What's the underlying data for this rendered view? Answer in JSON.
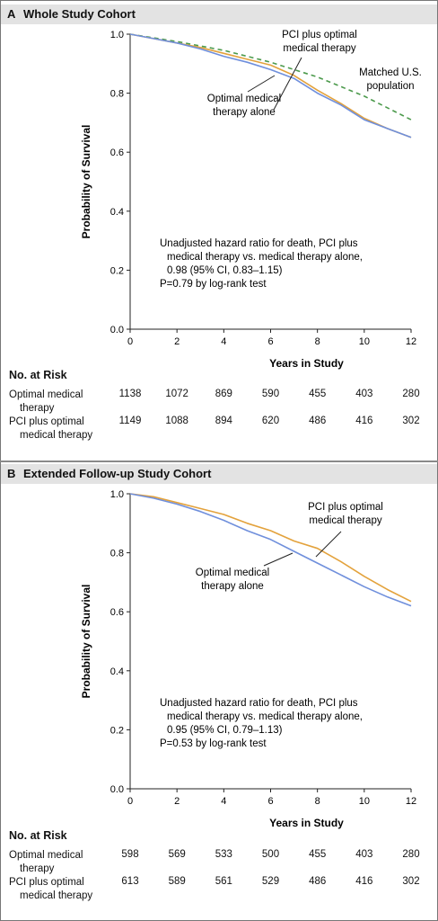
{
  "panels": [
    {
      "letter": "A",
      "title": "Whole Study Cohort",
      "annotation_lines": [
        "Unadjusted hazard ratio for death, PCI plus",
        "medical therapy vs. medical therapy alone,",
        "0.98 (95% CI, 0.83–1.15)",
        "P=0.79 by log-rank test"
      ],
      "series_labels": {
        "pci": [
          "PCI plus optimal",
          "medical therapy"
        ],
        "omt": [
          "Optimal medical",
          "therapy alone"
        ],
        "us": [
          "Matched U.S.",
          "population"
        ]
      },
      "risk": {
        "header": "No. at Risk",
        "rows": [
          {
            "label": [
              "Optimal medical",
              "therapy"
            ],
            "values": [
              1138,
              1072,
              869,
              590,
              455,
              403,
              280
            ]
          },
          {
            "label": [
              "PCI plus optimal",
              "medical therapy"
            ],
            "values": [
              1149,
              1088,
              894,
              620,
              486,
              416,
              302
            ]
          }
        ]
      }
    },
    {
      "letter": "B",
      "title": "Extended Follow-up Study Cohort",
      "annotation_lines": [
        "Unadjusted hazard ratio for death, PCI plus",
        "medical therapy vs. medical therapy alone,",
        "0.95 (95% CI, 0.79–1.13)",
        "P=0.53 by log-rank test"
      ],
      "series_labels": {
        "pci": [
          "PCI plus optimal",
          "medical therapy"
        ],
        "omt": [
          "Optimal medical",
          "therapy alone"
        ]
      },
      "risk": {
        "header": "No. at Risk",
        "rows": [
          {
            "label": [
              "Optimal medical",
              "therapy"
            ],
            "values": [
              598,
              569,
              533,
              500,
              455,
              403,
              280
            ]
          },
          {
            "label": [
              "PCI plus optimal",
              "medical therapy"
            ],
            "values": [
              613,
              589,
              561,
              529,
              486,
              416,
              302
            ]
          }
        ]
      }
    }
  ],
  "colors": {
    "omt": "#6f8fdc",
    "pci": "#e3a23c",
    "us": "#4c9a4c"
  },
  "chart_data": [
    {
      "type": "line",
      "title": "Whole Study Cohort",
      "xlabel": "Years in Study",
      "ylabel": "Probability of Survival",
      "xlim": [
        0,
        12
      ],
      "ylim": [
        0,
        1.0
      ],
      "xticks": [
        0,
        2,
        4,
        6,
        8,
        10,
        12
      ],
      "yticks": [
        "0.0",
        "0.2",
        "0.4",
        "0.6",
        "0.8",
        "1.0"
      ],
      "series": [
        {
          "name": "Optimal medical therapy alone",
          "x": [
            0,
            1,
            2,
            3,
            4,
            5,
            6,
            7,
            8,
            9,
            10,
            11,
            12
          ],
          "y": [
            1.0,
            0.985,
            0.97,
            0.95,
            0.925,
            0.905,
            0.88,
            0.85,
            0.8,
            0.76,
            0.71,
            0.68,
            0.65
          ]
        },
        {
          "name": "PCI plus optimal medical therapy",
          "x": [
            0,
            1,
            2,
            3,
            4,
            5,
            6,
            7,
            8,
            9,
            10,
            11,
            12
          ],
          "y": [
            1.0,
            0.985,
            0.97,
            0.955,
            0.935,
            0.915,
            0.895,
            0.86,
            0.81,
            0.765,
            0.715,
            0.68,
            0.65
          ]
        },
        {
          "name": "Matched U.S. population",
          "x": [
            0,
            2,
            4,
            6,
            8,
            10,
            12
          ],
          "y": [
            1.0,
            0.975,
            0.945,
            0.905,
            0.855,
            0.79,
            0.71
          ]
        }
      ],
      "annotation": "Unadjusted hazard ratio for death, PCI plus medical therapy vs. medical therapy alone, 0.98 (95% CI, 0.83–1.15) P=0.79 by log-rank test"
    },
    {
      "type": "line",
      "title": "Extended Follow-up Study Cohort",
      "xlabel": "Years in Study",
      "ylabel": "Probability of Survival",
      "xlim": [
        0,
        12
      ],
      "ylim": [
        0,
        1.0
      ],
      "xticks": [
        0,
        2,
        4,
        6,
        8,
        10,
        12
      ],
      "yticks": [
        "0.0",
        "0.2",
        "0.4",
        "0.6",
        "0.8",
        "1.0"
      ],
      "series": [
        {
          "name": "Optimal medical therapy alone",
          "x": [
            0,
            1,
            2,
            3,
            4,
            5,
            6,
            7,
            8,
            9,
            10,
            11,
            12
          ],
          "y": [
            1.0,
            0.985,
            0.965,
            0.94,
            0.91,
            0.875,
            0.845,
            0.805,
            0.765,
            0.725,
            0.685,
            0.65,
            0.62
          ]
        },
        {
          "name": "PCI plus optimal medical therapy",
          "x": [
            0,
            1,
            2,
            3,
            4,
            5,
            6,
            7,
            8,
            9,
            10,
            11,
            12
          ],
          "y": [
            1.0,
            0.99,
            0.97,
            0.95,
            0.93,
            0.9,
            0.875,
            0.84,
            0.815,
            0.77,
            0.72,
            0.675,
            0.635
          ]
        }
      ],
      "annotation": "Unadjusted hazard ratio for death, PCI plus medical therapy vs. medical therapy alone, 0.95 (95% CI, 0.79–1.13) P=0.53 by log-rank test"
    }
  ]
}
